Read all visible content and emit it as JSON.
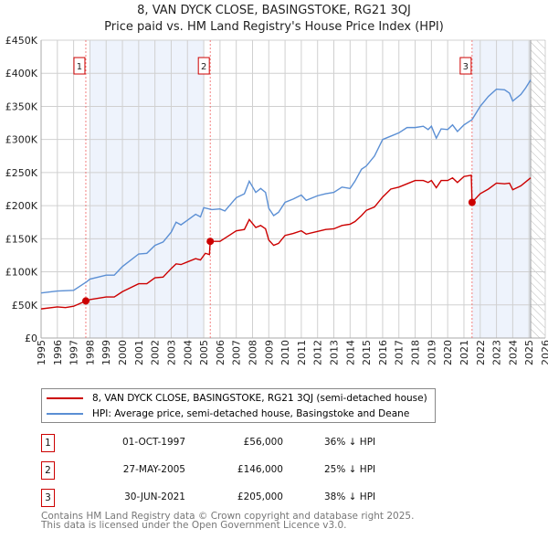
{
  "chart_data": {
    "type": "line",
    "title": "8, VAN DYCK CLOSE, BASINGSTOKE, RG21 3QJ",
    "subtitle": "Price paid vs. HM Land Registry's House Price Index (HPI)",
    "xlim": [
      1995,
      2026
    ],
    "ylim": [
      0,
      450000
    ],
    "yticks": [
      {
        "v": 0,
        "label": "£0"
      },
      {
        "v": 50000,
        "label": "£50K"
      },
      {
        "v": 100000,
        "label": "£100K"
      },
      {
        "v": 150000,
        "label": "£150K"
      },
      {
        "v": 200000,
        "label": "£200K"
      },
      {
        "v": 250000,
        "label": "£250K"
      },
      {
        "v": 300000,
        "label": "£300K"
      },
      {
        "v": 350000,
        "label": "£350K"
      },
      {
        "v": 400000,
        "label": "£400K"
      },
      {
        "v": 450000,
        "label": "£450K"
      }
    ],
    "xticks": [
      "1995",
      "1996",
      "1997",
      "1998",
      "1999",
      "2000",
      "2001",
      "2002",
      "2003",
      "2004",
      "2005",
      "2006",
      "2007",
      "2008",
      "2009",
      "2010",
      "2011",
      "2012",
      "2013",
      "2014",
      "2015",
      "2016",
      "2017",
      "2018",
      "2019",
      "2020",
      "2021",
      "2022",
      "2023",
      "2024",
      "2025",
      "2026"
    ],
    "shaded": [
      [
        1998.0,
        2005.0
      ],
      [
        2021.5,
        2025.1
      ]
    ],
    "forecast_start": 2025.1,
    "series": [
      {
        "name": "8, VAN DYCK CLOSE, BASINGSTOKE, RG21 3QJ (semi-detached house)",
        "color": "#cc0000",
        "points": [
          [
            1995,
            44
          ],
          [
            1996,
            47
          ],
          [
            1996.5,
            46
          ],
          [
            1997,
            48
          ],
          [
            1997.75,
            56
          ],
          [
            1998,
            58
          ],
          [
            1999,
            62
          ],
          [
            1999.5,
            62
          ],
          [
            2000,
            70
          ],
          [
            2001,
            82
          ],
          [
            2001.5,
            82
          ],
          [
            2002,
            91
          ],
          [
            2002.5,
            92
          ],
          [
            2003,
            105
          ],
          [
            2003.3,
            112
          ],
          [
            2003.6,
            111
          ],
          [
            2004,
            115
          ],
          [
            2004.5,
            120
          ],
          [
            2004.8,
            118
          ],
          [
            2005.1,
            128
          ],
          [
            2005.35,
            126
          ],
          [
            2005.4,
            146
          ],
          [
            2006,
            146
          ],
          [
            2007,
            162
          ],
          [
            2007.5,
            164
          ],
          [
            2007.8,
            179
          ],
          [
            2008.2,
            167
          ],
          [
            2008.5,
            170
          ],
          [
            2008.8,
            165
          ],
          [
            2009,
            148
          ],
          [
            2009.3,
            140
          ],
          [
            2009.6,
            143
          ],
          [
            2010,
            155
          ],
          [
            2010.5,
            158
          ],
          [
            2011,
            162
          ],
          [
            2011.3,
            157
          ],
          [
            2012,
            161
          ],
          [
            2012.5,
            164
          ],
          [
            2013,
            165
          ],
          [
            2013.5,
            170
          ],
          [
            2014,
            172
          ],
          [
            2014.3,
            176
          ],
          [
            2014.7,
            185
          ],
          [
            2015,
            193
          ],
          [
            2015.5,
            198
          ],
          [
            2016,
            213
          ],
          [
            2016.5,
            225
          ],
          [
            2017,
            228
          ],
          [
            2017.5,
            233
          ],
          [
            2018,
            238
          ],
          [
            2018.5,
            238
          ],
          [
            2018.8,
            235
          ],
          [
            2019,
            238
          ],
          [
            2019.3,
            227
          ],
          [
            2019.6,
            238
          ],
          [
            2020,
            238
          ],
          [
            2020.3,
            242
          ],
          [
            2020.6,
            235
          ],
          [
            2021,
            244
          ],
          [
            2021.45,
            246
          ],
          [
            2021.5,
            205
          ],
          [
            2022,
            218
          ],
          [
            2022.5,
            225
          ],
          [
            2023,
            234
          ],
          [
            2023.5,
            233
          ],
          [
            2023.8,
            234
          ],
          [
            2024,
            224
          ],
          [
            2024.5,
            230
          ],
          [
            2024.8,
            236
          ],
          [
            2025.1,
            242
          ]
        ]
      },
      {
        "name": "HPI: Average price, semi-detached house, Basingstoke and Deane",
        "color": "#5b8fd4",
        "points": [
          [
            1995,
            68
          ],
          [
            1996,
            71
          ],
          [
            1997,
            72
          ],
          [
            1997.8,
            85
          ],
          [
            1998,
            89
          ],
          [
            1999,
            95
          ],
          [
            1999.5,
            95
          ],
          [
            2000,
            108
          ],
          [
            2001,
            127
          ],
          [
            2001.5,
            128
          ],
          [
            2002,
            140
          ],
          [
            2002.5,
            145
          ],
          [
            2003,
            160
          ],
          [
            2003.3,
            175
          ],
          [
            2003.6,
            171
          ],
          [
            2004,
            178
          ],
          [
            2004.5,
            187
          ],
          [
            2004.8,
            183
          ],
          [
            2005,
            197
          ],
          [
            2005.5,
            194
          ],
          [
            2006,
            195
          ],
          [
            2006.3,
            192
          ],
          [
            2007,
            212
          ],
          [
            2007.5,
            218
          ],
          [
            2007.8,
            237
          ],
          [
            2008.2,
            220
          ],
          [
            2008.5,
            226
          ],
          [
            2008.8,
            220
          ],
          [
            2009,
            196
          ],
          [
            2009.3,
            185
          ],
          [
            2009.6,
            190
          ],
          [
            2010,
            205
          ],
          [
            2010.5,
            210
          ],
          [
            2011,
            216
          ],
          [
            2011.3,
            208
          ],
          [
            2012,
            215
          ],
          [
            2012.5,
            218
          ],
          [
            2013,
            220
          ],
          [
            2013.5,
            228
          ],
          [
            2014,
            226
          ],
          [
            2014.3,
            237
          ],
          [
            2014.7,
            255
          ],
          [
            2015,
            260
          ],
          [
            2015.5,
            275
          ],
          [
            2016,
            300
          ],
          [
            2016.5,
            305
          ],
          [
            2017,
            310
          ],
          [
            2017.5,
            318
          ],
          [
            2018,
            318
          ],
          [
            2018.5,
            320
          ],
          [
            2018.8,
            315
          ],
          [
            2019,
            320
          ],
          [
            2019.3,
            302
          ],
          [
            2019.6,
            316
          ],
          [
            2020,
            315
          ],
          [
            2020.3,
            322
          ],
          [
            2020.6,
            312
          ],
          [
            2021,
            322
          ],
          [
            2021.5,
            330
          ],
          [
            2022,
            350
          ],
          [
            2022.5,
            365
          ],
          [
            2023,
            376
          ],
          [
            2023.5,
            375
          ],
          [
            2023.8,
            370
          ],
          [
            2024,
            358
          ],
          [
            2024.5,
            368
          ],
          [
            2024.8,
            378
          ],
          [
            2025.1,
            390
          ]
        ]
      }
    ],
    "sales": [
      {
        "label": "1",
        "x": 1997.75,
        "value": 56000,
        "date": "01-OCT-1997",
        "price": "£56,000",
        "hpi": "36% ↓ HPI"
      },
      {
        "label": "2",
        "x": 2005.4,
        "value": 146000,
        "date": "27-MAY-2005",
        "price": "£146,000",
        "hpi": "25% ↓ HPI"
      },
      {
        "label": "3",
        "x": 2021.5,
        "value": 205000,
        "date": "30-JUN-2021",
        "price": "£205,000",
        "hpi": "38% ↓ HPI"
      }
    ]
  },
  "legend": {
    "red": "8, VAN DYCK CLOSE, BASINGSTOKE, RG21 3QJ (semi-detached house)",
    "blue": "HPI: Average price, semi-detached house, Basingstoke and Deane"
  },
  "footer": {
    "line1": "Contains HM Land Registry data © Crown copyright and database right 2025.",
    "line2": "This data is licensed under the Open Government Licence v3.0."
  }
}
